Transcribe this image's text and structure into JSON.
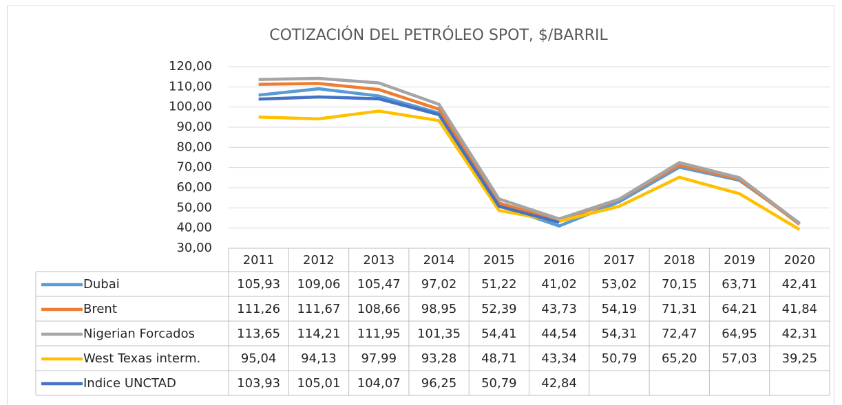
{
  "chart_data": {
    "type": "line",
    "title": "COTIZACIÓN DEL PETRÓLEO SPOT, $/BARRIL",
    "categories": [
      "2011",
      "2012",
      "2013",
      "2014",
      "2015",
      "2016",
      "2017",
      "2018",
      "2019",
      "2020"
    ],
    "ylim": [
      30,
      120
    ],
    "yticks": [
      {
        "value": 30,
        "label": "30,00"
      },
      {
        "value": 40,
        "label": "40,00"
      },
      {
        "value": 50,
        "label": "50,00"
      },
      {
        "value": 60,
        "label": "60,00"
      },
      {
        "value": 70,
        "label": "70,00"
      },
      {
        "value": 80,
        "label": "80,00"
      },
      {
        "value": 90,
        "label": "90,00"
      },
      {
        "value": 100,
        "label": "100,00"
      },
      {
        "value": 110,
        "label": "110,00"
      },
      {
        "value": 120,
        "label": "120,00"
      }
    ],
    "grid": true,
    "series": [
      {
        "name": "Dubai",
        "color": "#5b9bd5",
        "values": [
          105.93,
          109.06,
          105.47,
          97.02,
          51.22,
          41.02,
          53.02,
          70.15,
          63.71,
          42.41
        ],
        "value_labels": [
          "105,93",
          "109,06",
          "105,47",
          "97,02",
          "51,22",
          "41,02",
          "53,02",
          "70,15",
          "63,71",
          "42,41"
        ]
      },
      {
        "name": "Brent",
        "color": "#ed7d31",
        "values": [
          111.26,
          111.67,
          108.66,
          98.95,
          52.39,
          43.73,
          54.19,
          71.31,
          64.21,
          41.84
        ],
        "value_labels": [
          "111,26",
          "111,67",
          "108,66",
          "98,95",
          "52,39",
          "43,73",
          "54,19",
          "71,31",
          "64,21",
          "41,84"
        ]
      },
      {
        "name": "Nigerian Forcados",
        "color": "#a5a5a5",
        "values": [
          113.65,
          114.21,
          111.95,
          101.35,
          54.41,
          44.54,
          54.31,
          72.47,
          64.95,
          42.31
        ],
        "value_labels": [
          "113,65",
          "114,21",
          "111,95",
          "101,35",
          "54,41",
          "44,54",
          "54,31",
          "72,47",
          "64,95",
          "42,31"
        ]
      },
      {
        "name": "West Texas interm.",
        "color": "#ffc000",
        "values": [
          95.04,
          94.13,
          97.99,
          93.28,
          48.71,
          43.34,
          50.79,
          65.2,
          57.03,
          39.25
        ],
        "value_labels": [
          "95,04",
          "94,13",
          "97,99",
          "93,28",
          "48,71",
          "43,34",
          "50,79",
          "65,20",
          "57,03",
          "39,25"
        ]
      },
      {
        "name": "Indice UNCTAD",
        "color": "#4472c4",
        "values": [
          103.93,
          105.01,
          104.07,
          96.25,
          50.79,
          42.84,
          null,
          null,
          null,
          null
        ],
        "value_labels": [
          "103,93",
          "105,01",
          "104,07",
          "96,25",
          "50,79",
          "42,84",
          null,
          null,
          null,
          null
        ]
      }
    ]
  }
}
